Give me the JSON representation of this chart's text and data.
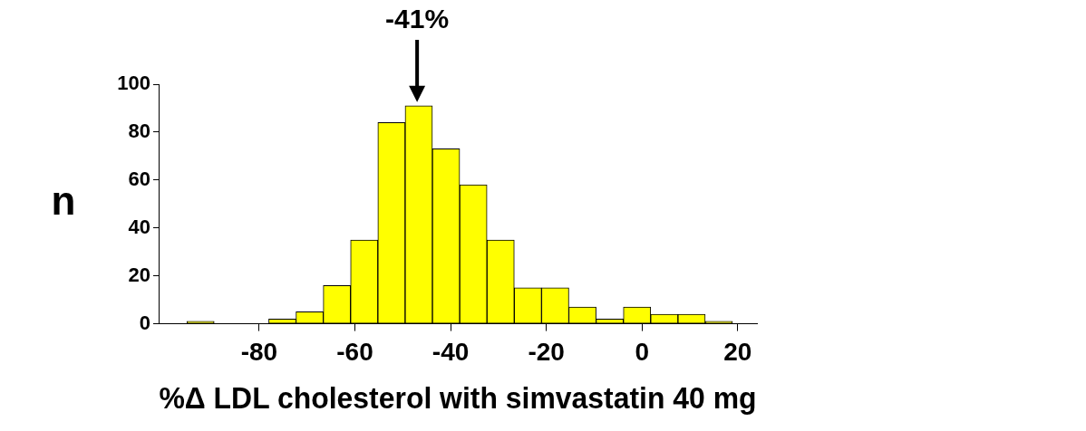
{
  "chart_data": {
    "type": "histogram",
    "xlabel": "%Δ LDL cholesterol with simvastatin 40 mg",
    "ylabel": "n",
    "bins": [
      -95.1,
      -89.4,
      -83.7,
      -78,
      -72.3,
      -66.6,
      -60.9,
      -55.2,
      -49.5,
      -43.8,
      -38.1,
      -32.4,
      -26.7,
      -21,
      -15.3,
      -9.6,
      -3.9,
      1.8,
      7.5,
      13.2,
      18.9
    ],
    "values": [
      1,
      0,
      0,
      2,
      5,
      16,
      35,
      84,
      91,
      73,
      58,
      35,
      15,
      15,
      7,
      2,
      7,
      4,
      4,
      1
    ],
    "color": "#ffff00",
    "xlim": [
      -101,
      24
    ],
    "xticks": [
      -80,
      -60,
      -40,
      -20,
      0,
      20
    ],
    "ylim": [
      0,
      100
    ],
    "yticks": [
      0,
      20,
      40,
      60,
      80,
      100
    ],
    "grid": false,
    "legend": false,
    "annotations": [
      {
        "text": "-41%",
        "x": -47,
        "y": 91
      }
    ]
  }
}
